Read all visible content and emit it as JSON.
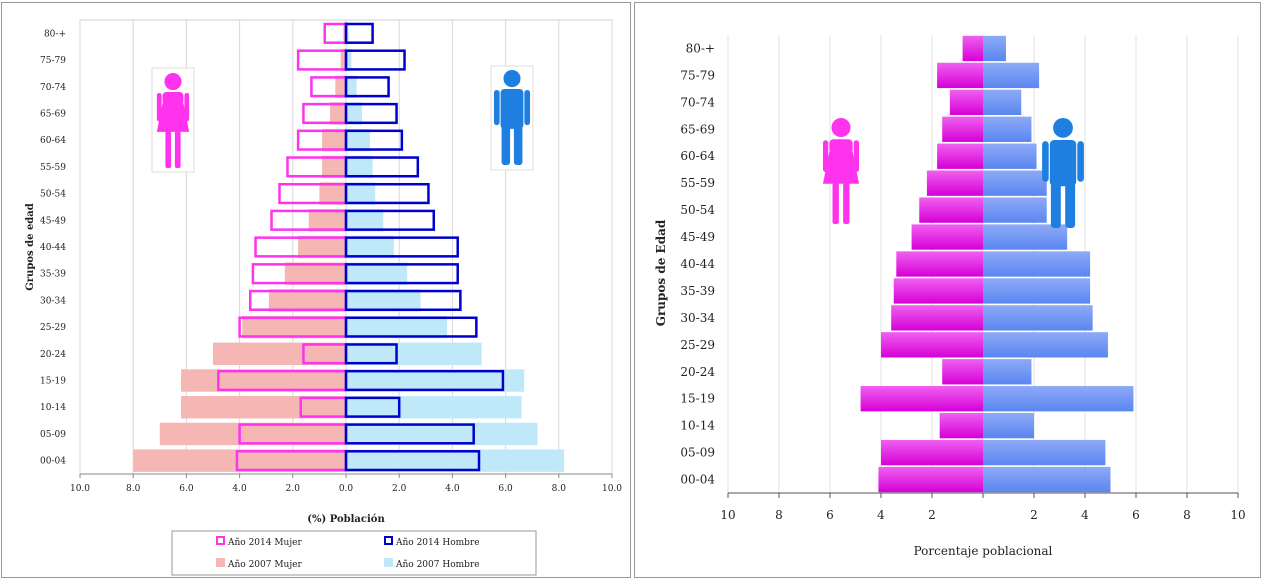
{
  "colors": {
    "female_2014": "#ff33ee",
    "male_2014": "#0000cc",
    "female_2007": "#f4b7b4",
    "male_2007": "#bfe9f9",
    "female_bar": "#d600d6",
    "male_bar": "#5a86f0",
    "female_icon": "#ff33ee",
    "male_icon": "#1f7fe0"
  },
  "chart_data": [
    {
      "type": "bar",
      "orientation": "horizontal-pyramid",
      "ylabel": "Grupos de edad",
      "xlabel": "(%) Población",
      "xlim": [
        -10,
        10
      ],
      "x_ticks": [
        "10.0",
        "8.0",
        "6.0",
        "4.0",
        "2.0",
        "0.0",
        "2.0",
        "4.0",
        "6.0",
        "8.0",
        "10.0"
      ],
      "grid": true,
      "legend_position": "bottom",
      "categories": [
        "00-04",
        "05-09",
        "10-14",
        "15-19",
        "20-24",
        "25-29",
        "30-34",
        "35-39",
        "40-44",
        "45-49",
        "50-54",
        "55-59",
        "60-64",
        "65-69",
        "70-74",
        "75-79",
        "80-+"
      ],
      "series": [
        {
          "name": "Año 2014 Mujer",
          "side": "left",
          "style": "outline",
          "values": [
            4.1,
            4.0,
            1.7,
            4.8,
            1.6,
            4.0,
            3.6,
            3.5,
            3.4,
            2.8,
            2.5,
            2.2,
            1.8,
            1.6,
            1.3,
            1.8,
            0.8
          ]
        },
        {
          "name": "Año 2014 Hombre",
          "side": "right",
          "style": "outline",
          "values": [
            5.0,
            4.8,
            2.0,
            5.9,
            1.9,
            4.9,
            4.3,
            4.2,
            4.2,
            3.3,
            3.1,
            2.7,
            2.1,
            1.9,
            1.6,
            2.2,
            1.0
          ]
        },
        {
          "name": "Año 2007 Mujer",
          "side": "left",
          "style": "fill",
          "values": [
            8.0,
            7.0,
            6.2,
            6.2,
            5.0,
            3.9,
            2.9,
            2.3,
            1.8,
            1.4,
            1.0,
            0.9,
            0.9,
            0.6,
            0.4,
            0.2,
            0.1
          ]
        },
        {
          "name": "Año 2007 Hombre",
          "side": "right",
          "style": "fill",
          "values": [
            8.2,
            7.2,
            6.6,
            6.7,
            5.1,
            3.8,
            2.8,
            2.3,
            1.8,
            1.4,
            1.1,
            1.0,
            0.9,
            0.6,
            0.4,
            0.2,
            0.1
          ]
        }
      ]
    },
    {
      "type": "bar",
      "orientation": "horizontal-pyramid",
      "ylabel": "Grupos de Edad",
      "xlabel": "Porcentaje poblacional",
      "xlim": [
        -10,
        10
      ],
      "x_ticks": [
        "10",
        "8",
        "6",
        "4",
        "2",
        "2",
        "4",
        "6",
        "8",
        "10"
      ],
      "grid": true,
      "categories": [
        "00-04",
        "05-09",
        "10-14",
        "15-19",
        "20-24",
        "25-29",
        "30-34",
        "35-39",
        "40-44",
        "45-49",
        "50-54",
        "55-59",
        "60-64",
        "65-69",
        "70-74",
        "75-79",
        "80-+"
      ],
      "series": [
        {
          "side": "left",
          "values": [
            4.1,
            4.0,
            1.7,
            4.8,
            1.6,
            4.0,
            3.6,
            3.5,
            3.4,
            2.8,
            2.5,
            2.2,
            1.8,
            1.6,
            1.3,
            1.8,
            0.8
          ]
        },
        {
          "side": "right",
          "values": [
            5.0,
            4.8,
            2.0,
            5.9,
            1.9,
            4.9,
            4.3,
            4.2,
            4.2,
            3.3,
            2.5,
            2.5,
            2.1,
            1.9,
            1.5,
            2.2,
            0.9
          ]
        }
      ]
    }
  ],
  "icons": [
    "female-icon",
    "male-icon"
  ]
}
